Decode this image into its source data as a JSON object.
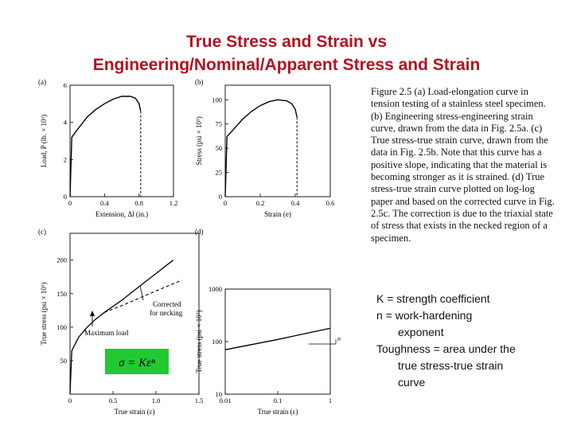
{
  "title": {
    "line1": "True Stress and Strain vs",
    "line2": "Engineering/Nominal/Apparent Stress and Strain"
  },
  "caption": "Figure 2.5 (a) Load-elongation curve in tension testing of a stainless steel specimen. (b) Engineering stress-engineering strain curve, drawn from the data in Fig. 2.5a. (c) True stress-true strain curve, drawn from the data in Fig. 2.5b. Note that this curve has a positive slope, indicating that the material is becoming stronger as it is strained. (d) True stress-true strain curve plotted on log-log paper and based on the corrected curve in Fig. 2.5c. The correction is due to the triaxial state of stress that exists in the necked region of a specimen.",
  "notes": {
    "k_line": "K = strength coefficient",
    "n_line1": "n = work-hardening",
    "n_line2": "exponent",
    "t_line1": "Toughness = area under the",
    "t_line2": "true stress-true strain",
    "t_line3": "curve"
  },
  "formula": "σ = Kεⁿ",
  "formula_bg": "#22c933",
  "chart_data": [
    {
      "panel": "(a)",
      "type": "line",
      "xlabel": "Extension, Δl (in.)",
      "ylabel": "Load, P (lb. × 10³)",
      "xticks": [
        "0",
        "0.4",
        "0.8",
        "1.2"
      ],
      "yticks": [
        "0",
        "2",
        "4",
        "6"
      ],
      "xlim": [
        0,
        1.2
      ],
      "ylim": [
        0,
        6
      ],
      "series": [
        {
          "x": [
            0,
            0.02,
            0.1,
            0.2,
            0.3,
            0.4,
            0.5,
            0.6,
            0.7,
            0.76,
            0.8,
            0.82,
            0.82
          ],
          "y": [
            0,
            3.2,
            3.7,
            4.3,
            4.7,
            5.0,
            5.25,
            5.4,
            5.4,
            5.3,
            5.0,
            4.6,
            0
          ]
        }
      ]
    },
    {
      "panel": "(b)",
      "type": "line",
      "xlabel": "Strain (e)",
      "ylabel": "Stress (psi × 10³)",
      "xticks": [
        "0",
        "0.2",
        "0.4",
        "0.6"
      ],
      "yticks": [
        "0",
        "25",
        "50",
        "75",
        "100"
      ],
      "xlim": [
        0,
        0.6
      ],
      "ylim": [
        0,
        115
      ],
      "series": [
        {
          "x": [
            0,
            0.01,
            0.05,
            0.1,
            0.15,
            0.2,
            0.25,
            0.3,
            0.35,
            0.38,
            0.4,
            0.41,
            0.41
          ],
          "y": [
            0,
            62,
            70,
            80,
            88,
            94,
            98,
            100,
            99,
            96,
            90,
            82,
            0
          ]
        }
      ]
    },
    {
      "panel": "(c)",
      "type": "line",
      "xlabel": "True strain (ε)",
      "ylabel": "True stress (psi × 10³)",
      "xticks": [
        "0",
        "0.5",
        "1.0",
        "1.5"
      ],
      "yticks": [
        "50",
        "100",
        "150",
        "200"
      ],
      "xlim": [
        0,
        1.5
      ],
      "ylim": [
        0,
        240
      ],
      "annotations": [
        "Corrected for necking",
        "Maximum load"
      ],
      "series": [
        {
          "x": [
            0,
            0.02,
            0.1,
            0.2,
            0.3,
            0.4,
            0.6,
            0.8,
            1.0,
            1.2
          ],
          "y": [
            0,
            65,
            85,
            100,
            112,
            122,
            140,
            160,
            180,
            200
          ]
        },
        {
          "x": [
            0.4,
            0.6,
            0.8,
            1.0,
            1.3
          ],
          "y": [
            122,
            132,
            143,
            154,
            170
          ]
        }
      ]
    },
    {
      "panel": "(d)",
      "type": "line",
      "xlabel": "True strain (ε)",
      "ylabel": "True stress (psi × 10³)",
      "xscale": "log",
      "yscale": "log",
      "xticks": [
        "0.01",
        "0.1",
        "1"
      ],
      "yticks": [
        "10",
        "100",
        "1000"
      ],
      "xlim": [
        0.01,
        1
      ],
      "ylim": [
        10,
        1000
      ],
      "annotations": [
        "n"
      ],
      "series": [
        {
          "x": [
            0.01,
            0.1,
            1
          ],
          "y": [
            70,
            110,
            180
          ]
        }
      ]
    }
  ]
}
